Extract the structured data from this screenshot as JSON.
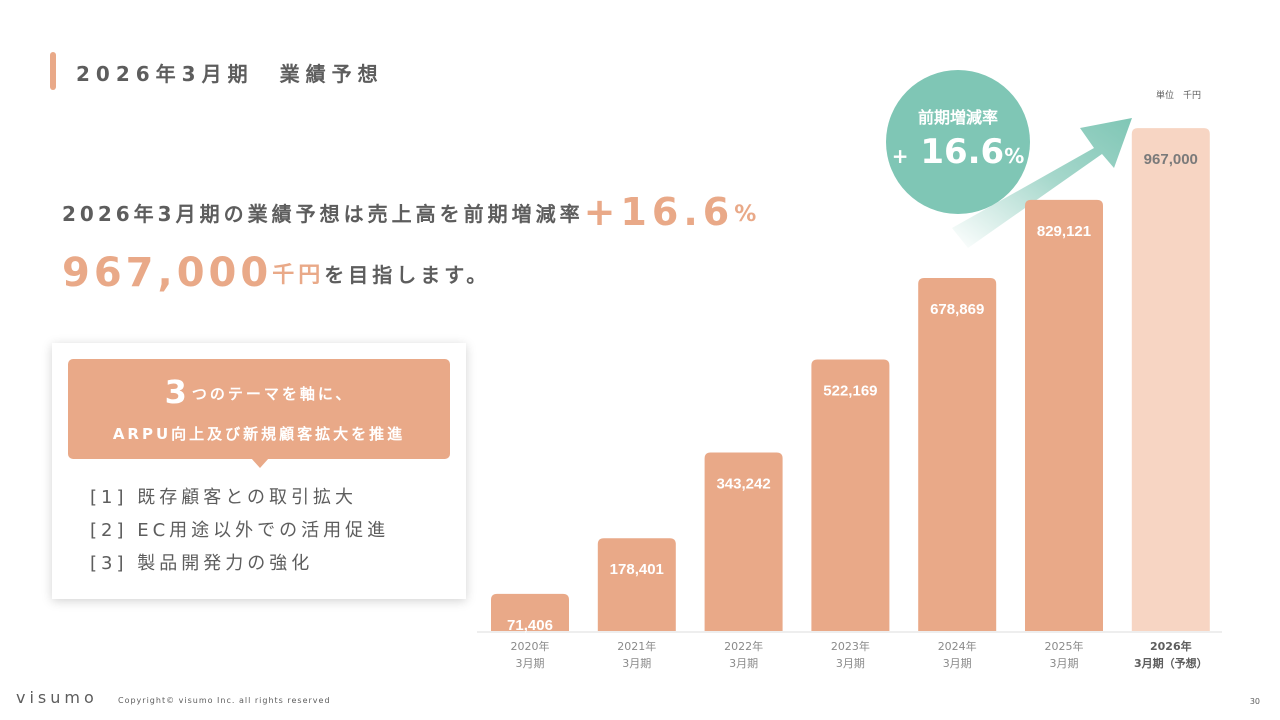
{
  "title": "2026年3月期　業績予想",
  "headline": {
    "line1_text": "2026年3月期の業績予想は売上高を前期増減率",
    "line1_big": "+16.6",
    "line1_pct": "%",
    "line2_big": "967,000",
    "line2_unit": "千円",
    "line2_text": "を目指します。"
  },
  "card": {
    "head_num": "3",
    "head_line1": "つのテーマを軸に、",
    "head_line2": "ARPU向上及び新規顧客拡大を推進",
    "items": [
      "[1] 既存顧客との取引拡大",
      "[2] EC用途以外での活用促進",
      "[3] 製品開発力の強化"
    ]
  },
  "badge": {
    "label": "前期増減率",
    "sign": "+",
    "value": "16.6",
    "pct": "%"
  },
  "unit_label": "単位　千円",
  "footer": {
    "logo": "visumo",
    "copyright": "Copyright© visumo Inc. all rights reserved",
    "page": "30"
  },
  "colors": {
    "bar": "#e9a988",
    "bar_forecast": "#f7d5c3",
    "accent": "#7fc6b5",
    "text": "#5d5d5d"
  },
  "chart_data": {
    "type": "bar",
    "categories": [
      [
        "2020年",
        "3月期"
      ],
      [
        "2021年",
        "3月期"
      ],
      [
        "2022年",
        "3月期"
      ],
      [
        "2023年",
        "3月期"
      ],
      [
        "2024年",
        "3月期"
      ],
      [
        "2025年",
        "3月期"
      ],
      [
        "2026年",
        "3月期（予想）"
      ]
    ],
    "values": [
      71406,
      178401,
      343242,
      522169,
      678869,
      829121,
      967000
    ],
    "value_labels": [
      "71,406",
      "178,401",
      "343,242",
      "522,169",
      "678,869",
      "829,121",
      "967,000"
    ],
    "forecast_index": 6,
    "ylim": [
      0,
      1000000
    ],
    "title": "",
    "xlabel": "",
    "ylabel": ""
  }
}
